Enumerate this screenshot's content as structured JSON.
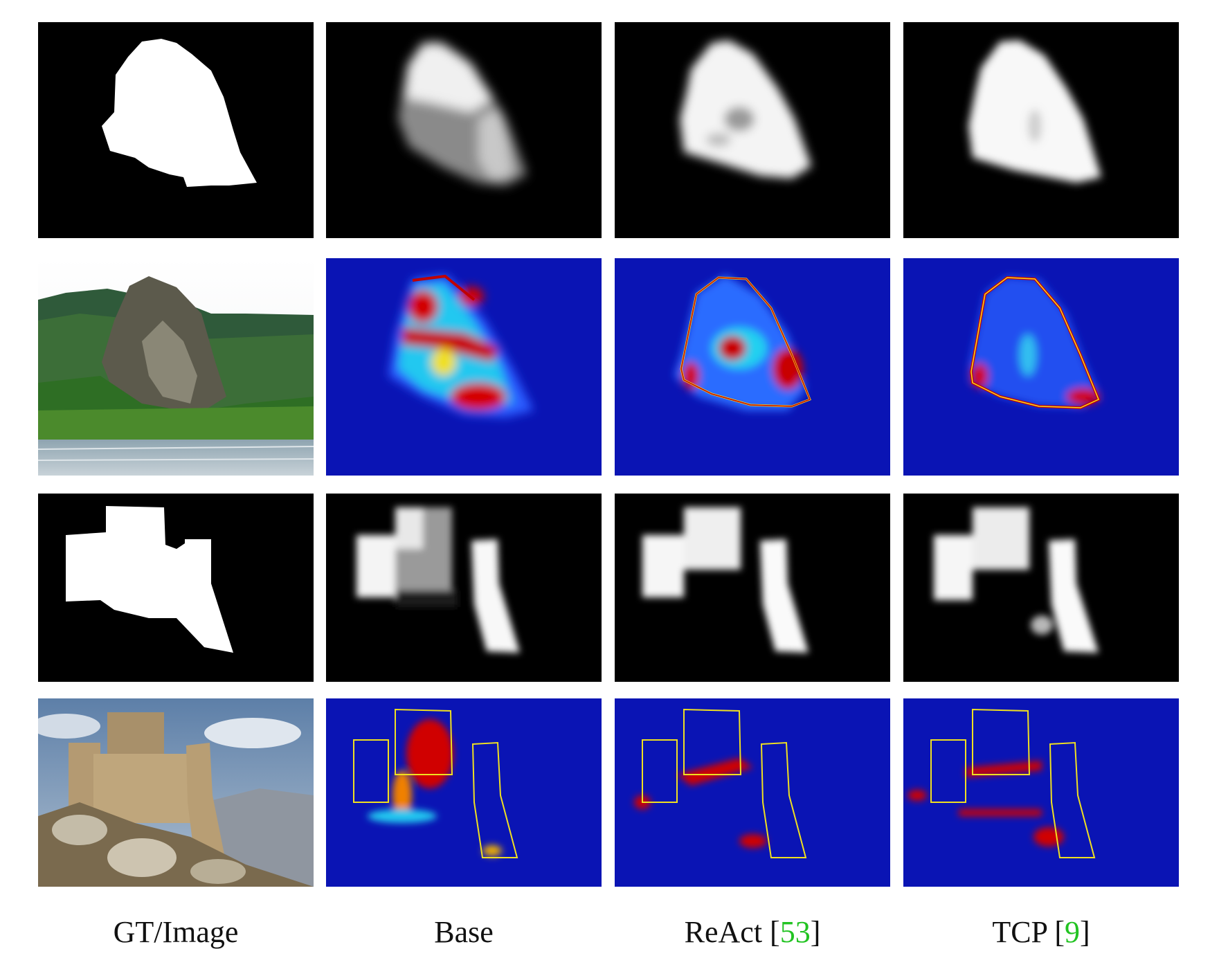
{
  "figure": {
    "columns": [
      {
        "label": "GT/Image",
        "ref": ""
      },
      {
        "label": "Base",
        "ref": ""
      },
      {
        "label": "ReAct",
        "ref": "53"
      },
      {
        "label": "TCP",
        "ref": "9"
      }
    ],
    "colors": {
      "mask_background": "#000000",
      "mask_foreground": "#ffffff",
      "heatmap_low": "#0a14b4",
      "heatmap_mid": "#10e0f0",
      "heatmap_high": "#c80000",
      "citation": "#22c322"
    }
  }
}
